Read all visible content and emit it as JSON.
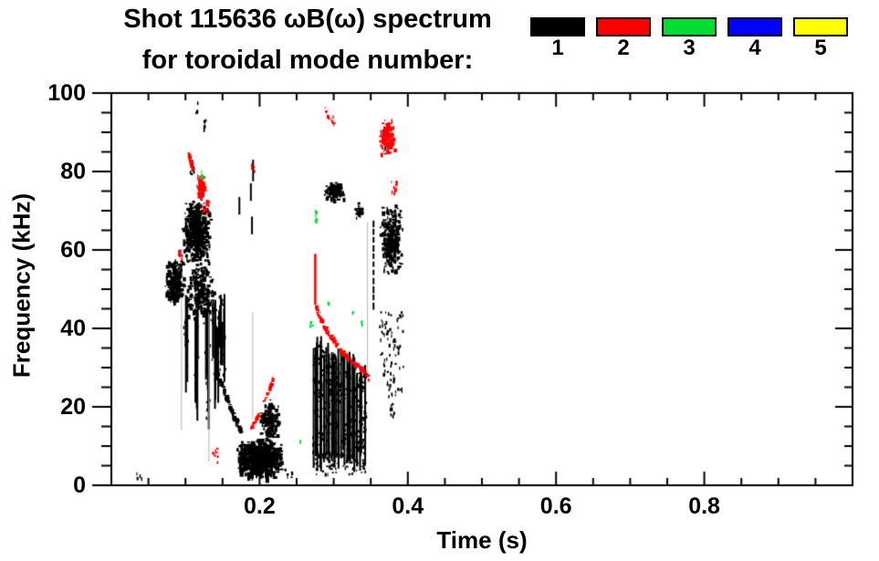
{
  "title": {
    "line1": "Shot 115636 ωB(ω) spectrum",
    "line2": "for toroidal mode number:"
  },
  "legend": {
    "entries": [
      {
        "label": "1",
        "color": "#000000"
      },
      {
        "label": "2",
        "color": "#ff0000"
      },
      {
        "label": "3",
        "color": "#00dd30"
      },
      {
        "label": "4",
        "color": "#0000ff"
      },
      {
        "label": "5",
        "color": "#ffff00"
      }
    ]
  },
  "axes": {
    "x": {
      "title": "Time (s)",
      "range": [
        0,
        1
      ],
      "major_ticks": [
        0.2,
        0.4,
        0.6,
        0.8
      ],
      "major_tick_labels": [
        "0.2",
        "0.4",
        "0.6",
        "0.8"
      ],
      "minor_tick_step": 0.05
    },
    "y": {
      "title": "Frequency (kHz)",
      "range": [
        0,
        100
      ],
      "major_ticks": [
        0,
        20,
        40,
        60,
        80,
        100
      ],
      "major_tick_labels": [
        "0",
        "20",
        "40",
        "60",
        "80",
        "100"
      ],
      "minor_tick_step": 5
    }
  },
  "chart_data": {
    "type": "scatter",
    "title": "Shot 115636 ωB(ω) spectrum for toroidal mode number",
    "xlabel": "Time (s)",
    "ylabel": "Frequency (kHz)",
    "xlim": [
      0,
      1.0
    ],
    "ylim": [
      0,
      100
    ],
    "grid": false,
    "legend_position": "top-right",
    "description": "Spectrogram-style scatter of coherent MHD mode activity vs time and frequency, color-coded by toroidal mode number n=1..5. Activity is confined to t = 0.03-0.40 s. Only n=1 (black), n=2 (red) and sparse n=3 (green) points appear; no n=4 (blue) or n=5 (yellow) points are present.",
    "modes_present": [
      1,
      2,
      3
    ],
    "regions": [
      {
        "mode": 1,
        "kind": "blob",
        "t": [
          0.071,
          0.097
        ],
        "f": [
          46,
          58
        ],
        "n": 260,
        "s": 3,
        "note": "left clump ~50 kHz"
      },
      {
        "mode": 1,
        "kind": "blob",
        "t": [
          0.094,
          0.133
        ],
        "f": [
          56,
          73.5
        ],
        "n": 520,
        "s": 3,
        "note": "dense blob 60-73 kHz"
      },
      {
        "mode": 1,
        "kind": "blob",
        "t": [
          0.098,
          0.138
        ],
        "f": [
          42,
          57
        ],
        "n": 200,
        "s": 3,
        "note": "lower extension"
      },
      {
        "mode": 1,
        "kind": "streaks",
        "t": [
          0.096,
          0.152
        ],
        "ftop": [
          40,
          50
        ],
        "fbot": [
          14,
          38
        ],
        "n": 24,
        "w": 2,
        "note": "descending vertical striations"
      },
      {
        "mode": 1,
        "kind": "path",
        "pts": [
          [
            0.139,
            29
          ],
          [
            0.149,
            25
          ],
          [
            0.159,
            20
          ],
          [
            0.168,
            16
          ],
          [
            0.173,
            14
          ]
        ],
        "w": 3,
        "s": 4,
        "n": 80,
        "note": "chirp down 29->14 kHz"
      },
      {
        "mode": 1,
        "kind": "blob",
        "t": [
          0.168,
          0.229
        ],
        "f": [
          2,
          12
        ],
        "n": 650,
        "s": 4,
        "note": "low-f dense blob"
      },
      {
        "mode": 1,
        "kind": "blob",
        "t": [
          0.197,
          0.227
        ],
        "f": [
          11,
          22.5
        ],
        "n": 160,
        "s": 3,
        "note": "hump above blob"
      },
      {
        "mode": 1,
        "kind": "specks",
        "t": [
          0.103,
          0.111
        ],
        "f": [
          79.5,
          82
        ],
        "n": 10
      },
      {
        "mode": 1,
        "kind": "specks",
        "t": [
          0.113,
          0.116
        ],
        "f": [
          95,
          98
        ],
        "n": 4
      },
      {
        "mode": 1,
        "kind": "specks",
        "t": [
          0.123,
          0.126
        ],
        "f": [
          90.5,
          93.5
        ],
        "n": 6
      },
      {
        "mode": 1,
        "kind": "vline",
        "t": 0.1715,
        "f": [
          69,
          73.5
        ],
        "w": 2
      },
      {
        "mode": 1,
        "kind": "vline",
        "t": 0.19,
        "f": [
          77.5,
          83
        ],
        "w": 2
      },
      {
        "mode": 1,
        "kind": "vline",
        "t": 0.187,
        "f": [
          72.5,
          77
        ],
        "w": 2
      },
      {
        "mode": 1,
        "kind": "vline",
        "t": 0.1885,
        "f": [
          64,
          68.5
        ],
        "w": 2
      },
      {
        "mode": 1,
        "kind": "specks",
        "t": [
          0.229,
          0.248
        ],
        "f": [
          2.2,
          4.5
        ],
        "n": 8
      },
      {
        "mode": 1,
        "kind": "specks",
        "t": [
          0.032,
          0.041
        ],
        "f": [
          2,
          3.5
        ],
        "n": 4
      },
      {
        "mode": 1,
        "kind": "mass",
        "t": [
          0.271,
          0.343
        ],
        "ftopA": 37,
        "ftopB": 29,
        "fbot": [
          3,
          9
        ],
        "lines": 36,
        "w": 2,
        "dots": 450,
        "note": "dense striated band 5-37 kHz"
      },
      {
        "mode": 1,
        "kind": "blob",
        "t": [
          0.286,
          0.313
        ],
        "f": [
          72.5,
          78
        ],
        "n": 110,
        "s": 3
      },
      {
        "mode": 1,
        "kind": "blob",
        "t": [
          0.327,
          0.341
        ],
        "f": [
          68,
          72.5
        ],
        "n": 40,
        "s": 2
      },
      {
        "mode": 1,
        "kind": "vline",
        "t": 0.3525,
        "f": [
          46,
          67.5
        ],
        "w": 2,
        "dash": true
      },
      {
        "mode": 1,
        "kind": "blob",
        "t": [
          0.361,
          0.393
        ],
        "f": [
          53,
          72
        ],
        "n": 280,
        "s": 3,
        "note": "right cluster 55-70 kHz"
      },
      {
        "mode": 1,
        "kind": "specks",
        "t": [
          0.361,
          0.393
        ],
        "f": [
          23,
          45
        ],
        "n": 80
      },
      {
        "mode": 1,
        "kind": "specks",
        "t": [
          0.373,
          0.382
        ],
        "f": [
          17.5,
          21
        ],
        "n": 10
      },
      {
        "mode": 1,
        "kind": "specks",
        "t": [
          0.364,
          0.371
        ],
        "f": [
          86,
          92.5
        ],
        "n": 12
      },
      {
        "mode": 1,
        "kind": "faintline",
        "t": 0.094,
        "f": [
          14,
          48
        ]
      },
      {
        "mode": 1,
        "kind": "faintline",
        "t": 0.131,
        "f": [
          6,
          44
        ]
      },
      {
        "mode": 1,
        "kind": "faintline",
        "t": 0.19,
        "f": [
          17,
          44
        ]
      },
      {
        "mode": 1,
        "kind": "faintline",
        "t": 0.345,
        "f": [
          29,
          67
        ]
      },
      {
        "mode": 2,
        "kind": "specks",
        "t": [
          0.089,
          0.095
        ],
        "f": [
          57,
          60.5
        ],
        "n": 10
      },
      {
        "mode": 2,
        "kind": "path",
        "pts": [
          [
            0.103,
            84.5
          ],
          [
            0.106,
            82.5
          ],
          [
            0.109,
            80.5
          ]
        ],
        "w": 2.5,
        "n": 26,
        "s": 3
      },
      {
        "mode": 2,
        "kind": "blob",
        "t": [
          0.114,
          0.126
        ],
        "f": [
          73,
          79.5
        ],
        "n": 90,
        "s": 3,
        "note": "red squiggle 73-79 kHz"
      },
      {
        "mode": 2,
        "kind": "specks",
        "t": [
          0.123,
          0.131
        ],
        "f": [
          69.5,
          73
        ],
        "n": 14
      },
      {
        "mode": 2,
        "kind": "specks",
        "t": [
          0.188,
          0.192
        ],
        "f": [
          79.5,
          82.5
        ],
        "n": 6
      },
      {
        "mode": 2,
        "kind": "path",
        "pts": [
          [
            0.187,
            14.5
          ],
          [
            0.193,
            16.8
          ],
          [
            0.198,
            18.5
          ]
        ],
        "w": 2,
        "n": 18,
        "s": 3
      },
      {
        "mode": 2,
        "kind": "path",
        "pts": [
          [
            0.203,
            21
          ],
          [
            0.209,
            23.5
          ],
          [
            0.214,
            26
          ],
          [
            0.218,
            28.5
          ]
        ],
        "w": 2,
        "n": 22,
        "s": 3,
        "note": "rising red chirp"
      },
      {
        "mode": 2,
        "kind": "specks",
        "t": [
          0.134,
          0.146
        ],
        "f": [
          6,
          10
        ],
        "n": 10
      },
      {
        "mode": 2,
        "kind": "vline",
        "t": 0.2735,
        "f": [
          46,
          59
        ],
        "w": 2.5
      },
      {
        "mode": 2,
        "kind": "path",
        "pts": [
          [
            0.2745,
            45.5
          ],
          [
            0.285,
            41
          ],
          [
            0.296,
            37.8
          ],
          [
            0.308,
            34.8
          ],
          [
            0.322,
            32
          ],
          [
            0.336,
            30
          ],
          [
            0.346,
            27.5
          ]
        ],
        "w": 2.5,
        "n": 130,
        "s": 3,
        "note": "red arc 45->28 kHz"
      },
      {
        "mode": 2,
        "kind": "path",
        "pts": [
          [
            0.2875,
            96.5
          ],
          [
            0.29,
            94.5
          ],
          [
            0.2925,
            93.2
          ]
        ],
        "w": 2,
        "n": 10,
        "s": 2
      },
      {
        "mode": 2,
        "kind": "specks",
        "t": [
          0.296,
          0.3
        ],
        "f": [
          92,
          94.5
        ],
        "n": 5
      },
      {
        "mode": 2,
        "kind": "blob",
        "t": [
          0.36,
          0.381
        ],
        "f": [
          84,
          94
        ],
        "n": 110,
        "s": 3,
        "note": "red squiggle 84-94 kHz"
      },
      {
        "mode": 2,
        "kind": "specks",
        "t": [
          0.377,
          0.385
        ],
        "f": [
          74.5,
          79
        ],
        "n": 12
      },
      {
        "mode": 3,
        "kind": "specks",
        "t": [
          0.1195,
          0.1225
        ],
        "f": [
          78.5,
          80.5
        ],
        "n": 6
      },
      {
        "mode": 3,
        "kind": "specks",
        "t": [
          0.2735,
          0.2765
        ],
        "f": [
          67,
          70.5
        ],
        "n": 7
      },
      {
        "mode": 3,
        "kind": "specks",
        "t": [
          0.265,
          0.272
        ],
        "f": [
          40.8,
          42.3
        ],
        "n": 5
      },
      {
        "mode": 3,
        "kind": "specks",
        "t": [
          0.3365,
          0.3385
        ],
        "f": [
          41,
          42.2
        ],
        "n": 3
      },
      {
        "mode": 3,
        "kind": "specks",
        "t": [
          0.252,
          0.254
        ],
        "f": [
          11,
          12
        ],
        "n": 2
      },
      {
        "mode": 3,
        "kind": "specks",
        "t": [
          0.29,
          0.292
        ],
        "f": [
          46.5,
          48
        ],
        "n": 2
      },
      {
        "mode": 3,
        "kind": "specks",
        "t": [
          0.324,
          0.326
        ],
        "f": [
          44,
          45.5
        ],
        "n": 2
      }
    ]
  }
}
